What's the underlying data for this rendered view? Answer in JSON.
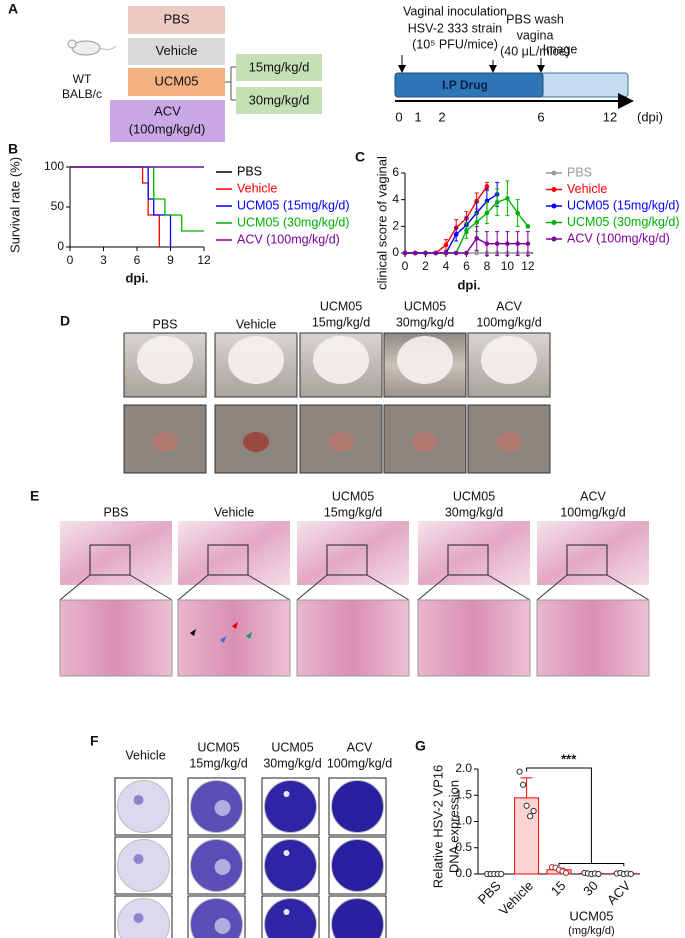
{
  "panel_labels": [
    "A",
    "B",
    "C",
    "D",
    "E",
    "F",
    "G"
  ],
  "design": {
    "mouse": [
      "WT",
      "BALB/c"
    ],
    "groups": [
      "PBS",
      "Vehicle",
      "UCM05",
      "ACV"
    ],
    "acv_dose": "(100mg/kg/d)",
    "ucm05_doses": [
      "15mg/kg/d",
      "30mg/kg/d"
    ]
  },
  "timeline": {
    "inoculation": [
      "Vaginal inoculation",
      "HSV-2 333 strain",
      "(10⁵ PFU/mice)"
    ],
    "wash": [
      "PBS wash",
      "vagina",
      "(40 μL/mice)"
    ],
    "image": "Image",
    "drug": "I.P Drug",
    "days": [
      0,
      1,
      2,
      6,
      12
    ],
    "unit": "(dpi)"
  },
  "chart_data": [
    {
      "type": "step",
      "ylabel": "Survival rate (%)",
      "xlabel": "dpi.",
      "xlim": [
        0,
        12
      ],
      "ylim": [
        0,
        100
      ],
      "xticks": [
        0,
        3,
        6,
        9,
        12
      ],
      "yticks": [
        0,
        50,
        100
      ],
      "series": [
        {
          "name": "PBS",
          "color": "#000000",
          "x": [
            0,
            12
          ],
          "values": [
            100,
            100
          ]
        },
        {
          "name": "Vehicle",
          "color": "#ff0000",
          "x": [
            0,
            6.5,
            7,
            8
          ],
          "values": [
            100,
            80,
            40,
            0
          ]
        },
        {
          "name": "UCM05 (15mg/kg/d)",
          "color": "#0000ff",
          "x": [
            0,
            7,
            7.5,
            9
          ],
          "values": [
            100,
            60,
            40,
            0
          ]
        },
        {
          "name": "UCM05 (30mg/kg/d)",
          "color": "#00b000",
          "x": [
            0,
            7.5,
            8.5,
            10,
            12
          ],
          "values": [
            100,
            60,
            40,
            20,
            20
          ]
        },
        {
          "name": "ACV (100mg/kg/d)",
          "color": "#8000a0",
          "x": [
            0,
            12
          ],
          "values": [
            100,
            100
          ]
        }
      ]
    },
    {
      "type": "line",
      "ylabel": "clinical score of vaginal",
      "xlabel": "dpi.",
      "xlim": [
        0,
        12.5
      ],
      "ylim": [
        0,
        6
      ],
      "xticks": [
        0,
        2,
        4,
        6,
        8,
        10,
        12
      ],
      "yticks": [
        0,
        2,
        4,
        6
      ],
      "x": [
        0,
        1,
        2,
        3,
        4,
        5,
        6,
        7,
        8,
        9,
        10,
        11,
        12
      ],
      "series": [
        {
          "name": "PBS",
          "color": "#999999",
          "values": [
            0,
            0,
            0,
            0,
            0,
            0,
            0,
            0,
            0,
            0,
            0,
            0,
            0
          ]
        },
        {
          "name": "Vehicle",
          "color": "#ff0000",
          "values": [
            0,
            0,
            0,
            0,
            0.6,
            1.9,
            2.6,
            3.9,
            5,
            null,
            null,
            null,
            null
          ],
          "errors": [
            0,
            0,
            0,
            0,
            0.4,
            0.6,
            0.5,
            0.6,
            0.3,
            null,
            null,
            null,
            null
          ]
        },
        {
          "name": "UCM05 (15mg/kg/d)",
          "color": "#0000ff",
          "values": [
            0,
            0,
            0,
            0,
            0,
            1.4,
            2.1,
            3,
            3.9,
            4.4,
            null,
            null,
            null
          ],
          "errors": [
            0,
            0,
            0,
            0,
            0,
            0.5,
            0.6,
            0.8,
            0.9,
            0.9,
            null,
            null,
            null
          ]
        },
        {
          "name": "UCM05 (30mg/kg/d)",
          "color": "#00b000",
          "values": [
            0,
            0,
            0,
            0,
            0,
            0,
            1.7,
            2.3,
            3,
            3.8,
            4.1,
            3,
            2
          ],
          "errors": [
            0,
            0,
            0,
            0,
            0,
            0,
            0.6,
            0.7,
            0.8,
            1,
            1.3,
            1,
            0
          ]
        },
        {
          "name": "ACV (100mg/kg/d)",
          "color": "#8000a0",
          "values": [
            0,
            0,
            0,
            0,
            0,
            0,
            0,
            1.1,
            0.7,
            0.7,
            0.7,
            0.7,
            0.7
          ],
          "errors": [
            0,
            0,
            0,
            0,
            0,
            0,
            0,
            0.9,
            0.9,
            0.9,
            0.9,
            0.9,
            0.9
          ]
        }
      ]
    },
    {
      "type": "bar",
      "ylabel": [
        "Relative HSV-2 VP16",
        "DNA expression"
      ],
      "ylim": [
        0,
        2
      ],
      "yticks": [
        {
          "value": 0,
          "label": "0.0"
        },
        {
          "value": 0.5,
          "label": "0.5"
        },
        {
          "value": 1,
          "label": "1.0"
        },
        {
          "value": 1.5,
          "label": "1.5"
        },
        {
          "value": 2,
          "label": "2.0"
        }
      ],
      "categories": [
        "PBS",
        "Vehicle",
        "15",
        "30",
        "ACV"
      ],
      "values": [
        0,
        1.45,
        0.08,
        0.01,
        0.01
      ],
      "errors": [
        0,
        0.38,
        0.03,
        0.02,
        0.01
      ],
      "points": [
        [
          0,
          0,
          0,
          0,
          0
        ],
        [
          1.95,
          1.7,
          1.3,
          1.1,
          1.2
        ],
        [
          0.13,
          0.12,
          0.08,
          0.05,
          0.02
        ],
        [
          0.02,
          0.01,
          0,
          0.01,
          0
        ],
        [
          0.01,
          0.02,
          0,
          0.01,
          0
        ]
      ],
      "color": "#ff0000",
      "annotation": "***",
      "group_label": [
        "UCM05",
        "(mg/kg/d)"
      ]
    }
  ],
  "photos_d": {
    "groups": [
      [
        "PBS"
      ],
      [
        "Vehicle"
      ],
      [
        "UCM05",
        "15mg/kg/d"
      ],
      [
        "UCM05",
        "30mg/kg/d"
      ],
      [
        "ACV",
        "100mg/kg/d"
      ]
    ]
  },
  "histology_e": {
    "groups": [
      [
        "PBS"
      ],
      [
        "Vehicle"
      ],
      [
        "UCM05",
        "15mg/kg/d"
      ],
      [
        "UCM05",
        "30mg/kg/d"
      ],
      [
        "ACV",
        "100mg/kg/d"
      ]
    ]
  },
  "plaques_f": {
    "groups": [
      [
        "Vehicle"
      ],
      [
        "UCM05",
        "15mg/kg/d"
      ],
      [
        "UCM05",
        "30mg/kg/d"
      ],
      [
        "ACV",
        "100mg/kg/d"
      ]
    ]
  }
}
